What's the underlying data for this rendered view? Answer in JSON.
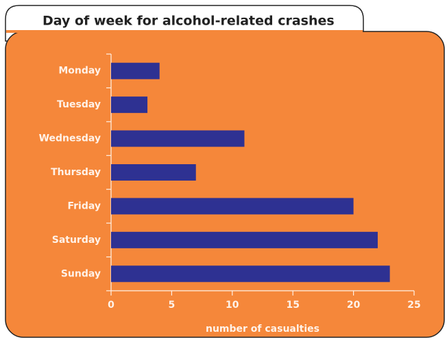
{
  "chart_data": {
    "type": "bar",
    "orientation": "horizontal",
    "title": "Day of week for alcohol-related crashes",
    "categories": [
      "Monday",
      "Tuesday",
      "Wednesday",
      "Thursday",
      "Friday",
      "Saturday",
      "Sunday"
    ],
    "values": [
      4,
      3,
      11,
      7,
      20,
      22,
      23
    ],
    "color": "#2e3192",
    "xlim": [
      0,
      25
    ],
    "xticks": [
      0,
      5,
      10,
      15,
      20,
      25
    ],
    "xlabel": "number of casualties"
  }
}
